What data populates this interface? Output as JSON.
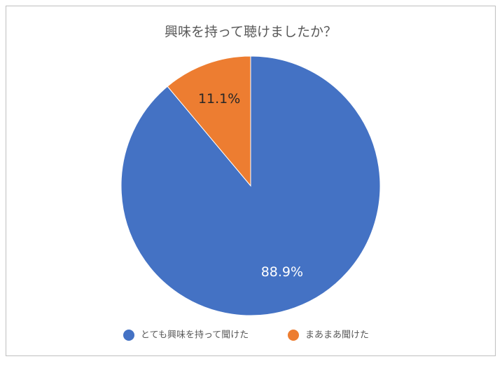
{
  "chart_data": {
    "type": "pie",
    "title": "興味を持って聴けましたか？",
    "categories": [
      "とても興味を持って聞けた",
      "まあまあ聞けた"
    ],
    "values": [
      88.9,
      11.1
    ],
    "value_labels": [
      "88.9%",
      "11.1%"
    ],
    "colors": [
      "#4472c4",
      "#ed7d31"
    ],
    "legend": "bottom"
  }
}
